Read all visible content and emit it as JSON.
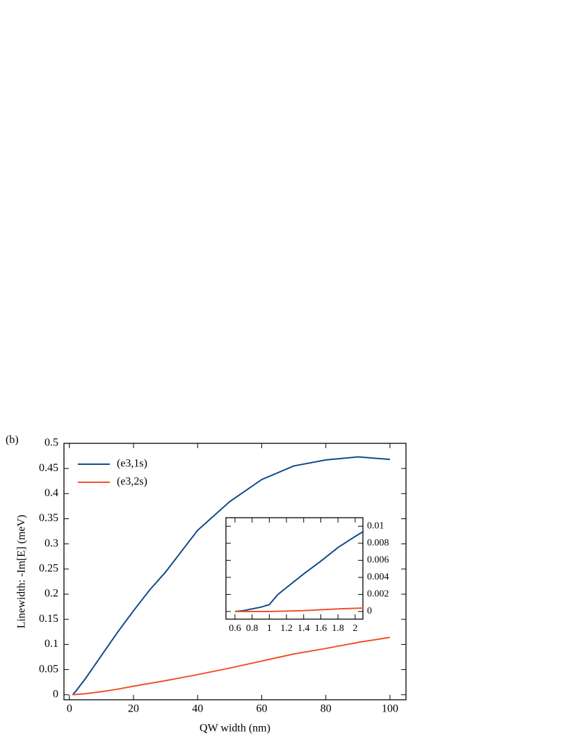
{
  "chart_data": [
    {
      "type": "line",
      "annotation": "(b)",
      "x_label": "QW width (nm)",
      "y_label": "Linewidth: -Im[E] (meV)",
      "xlim": [
        -1.7,
        105
      ],
      "ylim": [
        -0.01,
        0.5
      ],
      "xticks": [
        0,
        20,
        40,
        60,
        80,
        100
      ],
      "yticks": [
        0,
        0.05,
        0.1,
        0.15,
        0.2,
        0.25,
        0.3,
        0.35,
        0.4,
        0.45,
        0.5
      ],
      "legend": "upper left",
      "y_axis_side": "left",
      "series": [
        {
          "name": "(e3,1s)",
          "color": "#0d4a8a",
          "x": [
            1,
            2,
            5,
            10,
            15,
            20,
            25,
            30,
            40,
            50,
            60,
            70,
            80,
            90,
            100
          ],
          "values": [
            0,
            0.007,
            0.032,
            0.078,
            0.124,
            0.167,
            0.208,
            0.244,
            0.327,
            0.384,
            0.428,
            0.455,
            0.467,
            0.473,
            0.468
          ]
        },
        {
          "name": "(e3,2s)",
          "color": "#f0502a",
          "x": [
            1,
            5,
            10,
            15,
            20,
            30,
            40,
            50,
            60,
            70,
            80,
            90,
            100
          ],
          "values": [
            0,
            0.002,
            0.006,
            0.011,
            0.017,
            0.028,
            0.04,
            0.053,
            0.067,
            0.081,
            0.092,
            0.104,
            0.114
          ]
        }
      ]
    },
    {
      "type": "line",
      "xlim": [
        0.495,
        2.09
      ],
      "ylim": [
        -0.0009,
        0.011
      ],
      "xticks": [
        0.6,
        0.8,
        1,
        1.2,
        1.4,
        1.6,
        1.8,
        2
      ],
      "yticks": [
        0,
        0.002,
        0.004,
        0.006,
        0.008,
        0.01
      ],
      "y_axis_side": "right",
      "series": [
        {
          "color": "#0d4a8a",
          "x": [
            0.6,
            0.7,
            0.8,
            0.9,
            1.0,
            1.1,
            1.2,
            1.4,
            1.6,
            1.8,
            2.0,
            2.1
          ],
          "values": [
            0,
            0.0001,
            0.0003,
            0.0005,
            0.0008,
            0.002,
            0.0028,
            0.0044,
            0.0059,
            0.0075,
            0.0088,
            0.0094
          ]
        },
        {
          "color": "#f0502a",
          "x": [
            0.6,
            1.0,
            1.4,
            1.8,
            2.1
          ],
          "values": [
            0,
            0,
            0.0001,
            0.0003,
            0.0004
          ]
        }
      ]
    }
  ]
}
